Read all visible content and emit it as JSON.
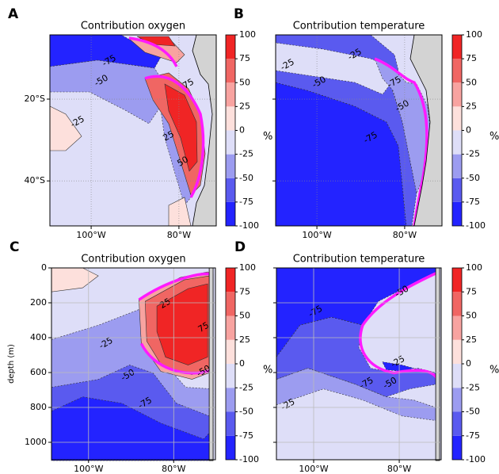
{
  "chart_data": [
    {
      "type": "contour",
      "label": "A",
      "title": "Contribution oxygen",
      "xlim": [
        -109.4,
        -71.5
      ],
      "xticks": [
        {
          "value": -100,
          "label": "100°W"
        },
        {
          "value": -80,
          "label": "80°W"
        }
      ],
      "ylim": [
        -51,
        -4.3
      ],
      "yticks": [
        {
          "value": -20,
          "label": "20°S"
        },
        {
          "value": -40,
          "label": "40°S"
        }
      ],
      "levels": [
        -100,
        -75,
        -50,
        -25,
        0,
        25,
        50,
        75,
        100
      ],
      "colors": [
        "#2323ff",
        "#5a5aef",
        "#9c9cf0",
        "#dedef8",
        "#fde0dc",
        "#f8a3a0",
        "#f06663",
        "#f02525"
      ],
      "colorbar_label": "%",
      "contour_labels": [
        -75,
        -50,
        -25,
        75,
        25,
        50
      ],
      "grid": "dotted"
    },
    {
      "type": "contour",
      "label": "B",
      "title": "Contribution temperature",
      "xlim": [
        -109.4,
        -71.5
      ],
      "xticks": [
        {
          "value": -100,
          "label": "100°W"
        },
        {
          "value": -80,
          "label": "80°W"
        }
      ],
      "ylim": [
        -51,
        -4.3
      ],
      "yticks": [
        -20,
        -40
      ],
      "show_ytick_labels": false,
      "levels": [
        -100,
        -75,
        -50,
        -25,
        0,
        25,
        50,
        75,
        100
      ],
      "colors": [
        "#2323ff",
        "#5a5aef",
        "#9c9cf0",
        "#dedef8",
        "#fde0dc",
        "#f8a3a0",
        "#f06663",
        "#f02525"
      ],
      "colorbar_label": "%",
      "contour_labels": [
        -25,
        -25,
        -50,
        -75,
        -75,
        -50
      ],
      "grid": "dotted"
    },
    {
      "type": "contour",
      "label": "C",
      "title": "Contribution oxygen",
      "ylabel": "depth (m)",
      "xlim": [
        -108.7,
        -70.2
      ],
      "xticks": [
        {
          "value": -100,
          "label": "100°W"
        },
        {
          "value": -80,
          "label": "80°W"
        }
      ],
      "ylim": [
        1100,
        0
      ],
      "yticks": [
        0,
        200,
        400,
        600,
        800,
        1000
      ],
      "levels": [
        -100,
        -75,
        -50,
        -25,
        0,
        25,
        50,
        75,
        100
      ],
      "colors": [
        "#2323ff",
        "#5a5aef",
        "#9c9cf0",
        "#dedef8",
        "#fde0dc",
        "#f8a3a0",
        "#f06663",
        "#f02525"
      ],
      "colorbar_label": "%",
      "contour_labels": [
        -25,
        25,
        75,
        -50,
        -50,
        -75
      ],
      "grid": "solid"
    },
    {
      "type": "contour",
      "label": "D",
      "title": "Contribution temperature",
      "xlim": [
        -108.7,
        -70.2
      ],
      "xticks": [
        {
          "value": -100,
          "label": "100°W"
        },
        {
          "value": -80,
          "label": "80°W"
        }
      ],
      "ylim": [
        1100,
        0
      ],
      "yticks": [
        0,
        200,
        400,
        600,
        800,
        1000
      ],
      "show_ytick_labels": false,
      "levels": [
        -100,
        -75,
        -50,
        -25,
        0,
        25,
        50,
        75,
        100
      ],
      "colors": [
        "#2323ff",
        "#5a5aef",
        "#9c9cf0",
        "#dedef8",
        "#fde0dc",
        "#f8a3a0",
        "#f06663",
        "#f02525"
      ],
      "colorbar_label": "%",
      "contour_labels": [
        -75,
        -50,
        -25,
        -75,
        -50,
        -25
      ],
      "grid": "solid"
    }
  ]
}
